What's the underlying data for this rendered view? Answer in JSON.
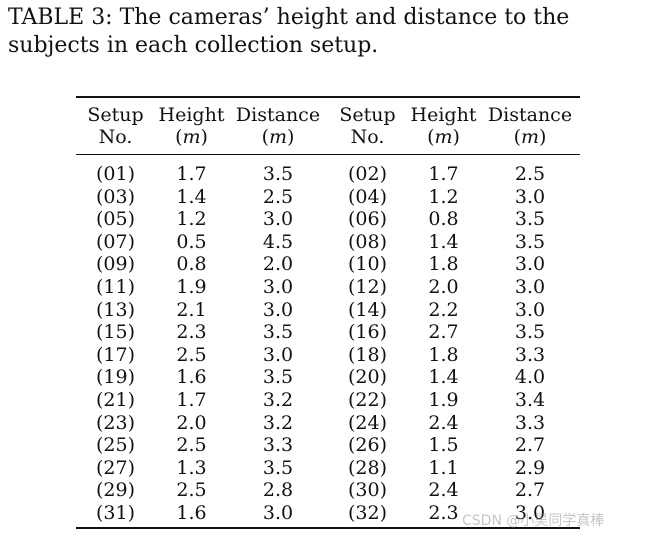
{
  "caption": "TABLE 3: The cameras’ height and distance to the subjects in each collection setup.",
  "table": {
    "headers": {
      "setup_line1": "Setup",
      "setup_line2": "No.",
      "height_line1": "Height",
      "distance_line1": "Distance",
      "unit_open": "(",
      "unit": "m",
      "unit_close": ")"
    },
    "rows": [
      [
        "(01)",
        "1.7",
        "3.5",
        "(02)",
        "1.7",
        "2.5"
      ],
      [
        "(03)",
        "1.4",
        "2.5",
        "(04)",
        "1.2",
        "3.0"
      ],
      [
        "(05)",
        "1.2",
        "3.0",
        "(06)",
        "0.8",
        "3.5"
      ],
      [
        "(07)",
        "0.5",
        "4.5",
        "(08)",
        "1.4",
        "3.5"
      ],
      [
        "(09)",
        "0.8",
        "2.0",
        "(10)",
        "1.8",
        "3.0"
      ],
      [
        "(11)",
        "1.9",
        "3.0",
        "(12)",
        "2.0",
        "3.0"
      ],
      [
        "(13)",
        "2.1",
        "3.0",
        "(14)",
        "2.2",
        "3.0"
      ],
      [
        "(15)",
        "2.3",
        "3.5",
        "(16)",
        "2.7",
        "3.5"
      ],
      [
        "(17)",
        "2.5",
        "3.0",
        "(18)",
        "1.8",
        "3.3"
      ],
      [
        "(19)",
        "1.6",
        "3.5",
        "(20)",
        "1.4",
        "4.0"
      ],
      [
        "(21)",
        "1.7",
        "3.2",
        "(22)",
        "1.9",
        "3.4"
      ],
      [
        "(23)",
        "2.0",
        "3.2",
        "(24)",
        "2.4",
        "3.3"
      ],
      [
        "(25)",
        "2.5",
        "3.3",
        "(26)",
        "1.5",
        "2.7"
      ],
      [
        "(27)",
        "1.3",
        "3.5",
        "(28)",
        "1.1",
        "2.9"
      ],
      [
        "(29)",
        "2.5",
        "2.8",
        "(30)",
        "2.4",
        "2.7"
      ],
      [
        "(31)",
        "1.6",
        "3.0",
        "(32)",
        "2.3",
        "3.0"
      ]
    ]
  },
  "watermark": "CSDN @小吴同学真棒"
}
